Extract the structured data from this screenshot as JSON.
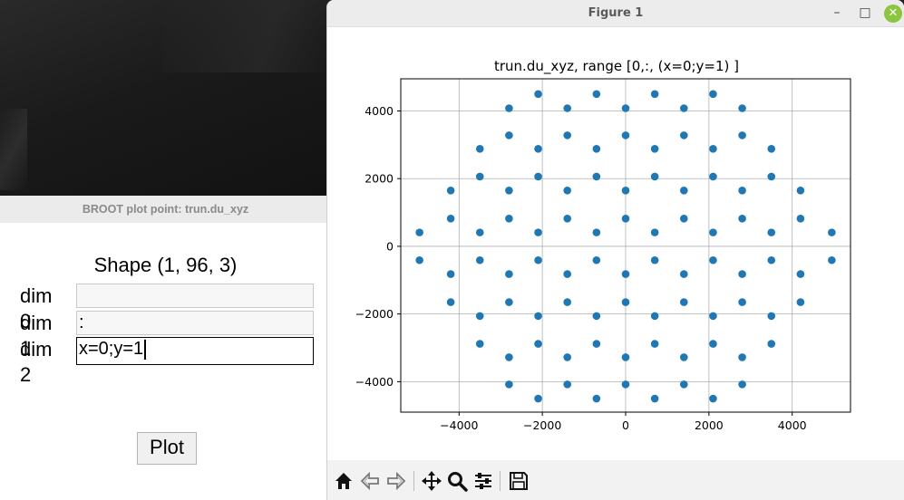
{
  "broot_window": {
    "title": "BROOT plot point: trun.du_xyz",
    "shape_label": "Shape (1, 96, 3)",
    "dims": [
      {
        "label": "dim 0",
        "value": ""
      },
      {
        "label": "dim 1",
        "value": ":"
      },
      {
        "label": "dim 2",
        "value": "x=0;y=1"
      }
    ],
    "plot_button": "Plot"
  },
  "figure_window": {
    "title": "Figure 1",
    "controls": {
      "minimize": "–",
      "maximize": "□",
      "close": "✕"
    },
    "toolbar": [
      {
        "name": "home-icon"
      },
      {
        "name": "back-icon"
      },
      {
        "name": "forward-icon"
      },
      {
        "name": "pan-icon"
      },
      {
        "name": "zoom-icon"
      },
      {
        "name": "configure-icon"
      },
      {
        "name": "save-icon"
      }
    ]
  },
  "chart_data": {
    "type": "scatter",
    "title": "trun.du_xyz, range [0,:, (x=0;y=1) ]",
    "xlabel": "",
    "ylabel": "",
    "xlim": [
      -5400,
      5400
    ],
    "ylim": [
      -4900,
      4950
    ],
    "xticks": [
      -4000,
      -2000,
      0,
      2000,
      4000
    ],
    "yticks": [
      -4000,
      -2000,
      0,
      2000,
      4000
    ],
    "xtick_labels": [
      "−4000",
      "−2000",
      "0",
      "2000",
      "4000"
    ],
    "ytick_labels": [
      "−4000",
      "−2000",
      "0",
      "2000",
      "4000"
    ],
    "grid": true,
    "marker_color": "#1f77b4",
    "points": [
      [
        -2100,
        4500
      ],
      [
        -700,
        4500
      ],
      [
        700,
        4500
      ],
      [
        2100,
        4500
      ],
      [
        -2800,
        4080
      ],
      [
        -1400,
        4080
      ],
      [
        0,
        4080
      ],
      [
        1400,
        4080
      ],
      [
        2800,
        4080
      ],
      [
        -3500,
        2880
      ],
      [
        -2100,
        2880
      ],
      [
        -700,
        2880
      ],
      [
        700,
        2880
      ],
      [
        2100,
        2880
      ],
      [
        3500,
        2880
      ],
      [
        -2800,
        3280
      ],
      [
        -1400,
        3280
      ],
      [
        0,
        3280
      ],
      [
        1400,
        3280
      ],
      [
        2800,
        3280
      ],
      [
        -3500,
        2060
      ],
      [
        -2100,
        2060
      ],
      [
        -700,
        2060
      ],
      [
        700,
        2060
      ],
      [
        2100,
        2060
      ],
      [
        3500,
        2060
      ],
      [
        -4200,
        1650
      ],
      [
        -2800,
        1650
      ],
      [
        -1400,
        1650
      ],
      [
        0,
        1650
      ],
      [
        1400,
        1650
      ],
      [
        2800,
        1650
      ],
      [
        4200,
        1650
      ],
      [
        -4200,
        820
      ],
      [
        -2800,
        820
      ],
      [
        -1400,
        820
      ],
      [
        0,
        820
      ],
      [
        1400,
        820
      ],
      [
        2800,
        820
      ],
      [
        4200,
        820
      ],
      [
        -4950,
        410
      ],
      [
        -3500,
        410
      ],
      [
        -2100,
        410
      ],
      [
        -700,
        410
      ],
      [
        700,
        410
      ],
      [
        2100,
        410
      ],
      [
        3500,
        410
      ],
      [
        4950,
        410
      ],
      [
        -4950,
        -410
      ],
      [
        -3500,
        -410
      ],
      [
        -2100,
        -410
      ],
      [
        -700,
        -410
      ],
      [
        700,
        -410
      ],
      [
        2100,
        -410
      ],
      [
        3500,
        -410
      ],
      [
        4950,
        -410
      ],
      [
        -4200,
        -820
      ],
      [
        -2800,
        -820
      ],
      [
        -1400,
        -820
      ],
      [
        0,
        -820
      ],
      [
        1400,
        -820
      ],
      [
        2800,
        -820
      ],
      [
        4200,
        -820
      ],
      [
        -4200,
        -1650
      ],
      [
        -2800,
        -1650
      ],
      [
        -1400,
        -1650
      ],
      [
        0,
        -1650
      ],
      [
        1400,
        -1650
      ],
      [
        2800,
        -1650
      ],
      [
        4200,
        -1650
      ],
      [
        -3500,
        -2060
      ],
      [
        -2100,
        -2060
      ],
      [
        -700,
        -2060
      ],
      [
        700,
        -2060
      ],
      [
        2100,
        -2060
      ],
      [
        3500,
        -2060
      ],
      [
        -3500,
        -2880
      ],
      [
        -2100,
        -2880
      ],
      [
        -700,
        -2880
      ],
      [
        700,
        -2880
      ],
      [
        2100,
        -2880
      ],
      [
        3500,
        -2880
      ],
      [
        -2800,
        -3280
      ],
      [
        -1400,
        -3280
      ],
      [
        0,
        -3280
      ],
      [
        1400,
        -3280
      ],
      [
        2800,
        -3280
      ],
      [
        -2800,
        -4080
      ],
      [
        -1400,
        -4080
      ],
      [
        0,
        -4080
      ],
      [
        1400,
        -4080
      ],
      [
        2800,
        -4080
      ],
      [
        -2100,
        -4500
      ],
      [
        -700,
        -4500
      ],
      [
        700,
        -4500
      ],
      [
        2100,
        -4500
      ]
    ]
  }
}
